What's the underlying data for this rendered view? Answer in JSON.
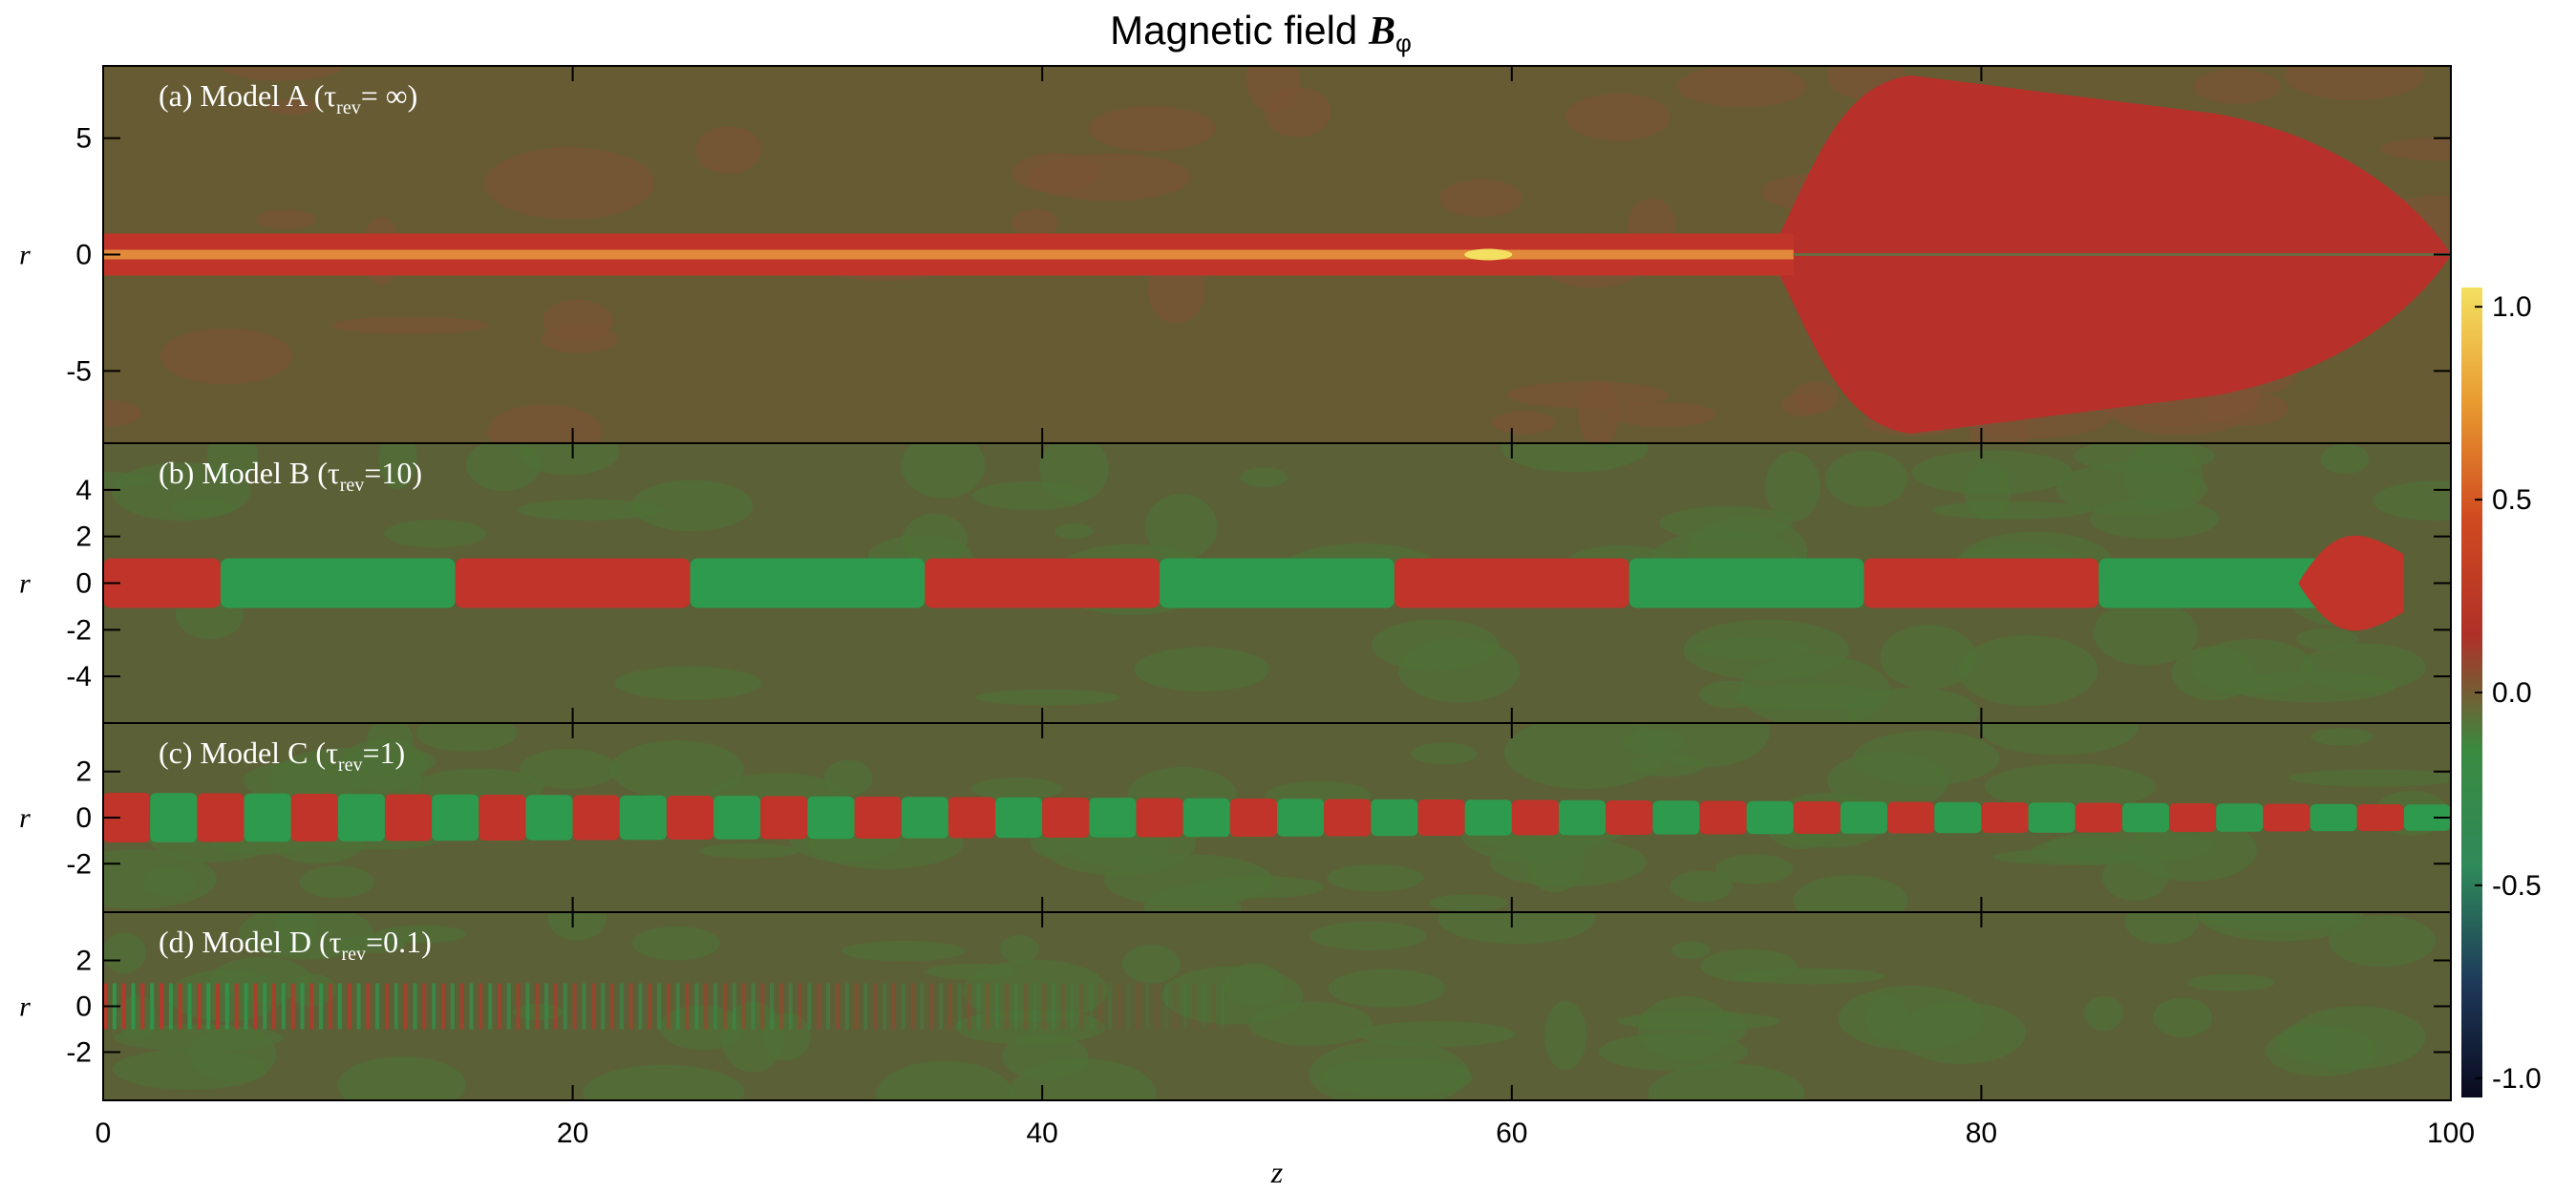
{
  "title": {
    "text": "Magnetic field",
    "symbol": "B",
    "subscript": "φ"
  },
  "chart_data": [
    {
      "type": "heatmap",
      "annotation_prefix": "(a) Model A (τ",
      "annotation_subscript": "rev",
      "annotation_suffix": "= ∞)",
      "ylabel": "r",
      "xlim": [
        0,
        100
      ],
      "xticks": [
        0,
        20,
        40,
        60,
        80,
        100
      ],
      "ylim": [
        -8.1,
        8.1
      ],
      "yticks": [
        -5,
        0,
        5
      ]
    },
    {
      "type": "heatmap",
      "annotation_prefix": "(b) Model B (τ",
      "annotation_subscript": "rev",
      "annotation_suffix": "=10)",
      "ylabel": "r",
      "xlim": [
        0,
        100
      ],
      "xticks": [
        0,
        20,
        40,
        60,
        80,
        100
      ],
      "ylim": [
        -6,
        6
      ],
      "yticks": [
        -4,
        -2,
        0,
        2,
        4
      ]
    },
    {
      "type": "heatmap",
      "annotation_prefix": "(c) Model C (τ",
      "annotation_subscript": "rev",
      "annotation_suffix": "=1)",
      "ylabel": "r",
      "xlim": [
        0,
        100
      ],
      "xticks": [
        0,
        20,
        40,
        60,
        80,
        100
      ],
      "ylim": [
        -4.1,
        4.1
      ],
      "yticks": [
        -2,
        0,
        2
      ]
    },
    {
      "type": "heatmap",
      "annotation_prefix": "(d) Model D (τ",
      "annotation_subscript": "rev",
      "annotation_suffix": "=0.1)",
      "ylabel": "r",
      "xlabel": "z",
      "xlim": [
        0,
        100
      ],
      "xticks": [
        0,
        20,
        40,
        60,
        80,
        100
      ],
      "ylim": [
        -4.1,
        4.1
      ],
      "yticks": [
        -2,
        0,
        2
      ]
    },
    {
      "type": "colorbar",
      "clim": [
        -1.05,
        1.05
      ],
      "colors": [
        "#0a0a1e",
        "#1e3a5a",
        "#2f8a5a",
        "#3a8a40",
        "#b03028",
        "#d04a20",
        "#e89a30",
        "#f4e060"
      ],
      "ticks": [
        {
          "value": -1,
          "label": "-1.0"
        },
        {
          "value": -0.5,
          "label": "-0.5"
        },
        {
          "value": 0,
          "label": "0.0"
        },
        {
          "value": 0.5,
          "label": "0.5"
        },
        {
          "value": 1,
          "label": "1.0"
        }
      ]
    }
  ]
}
